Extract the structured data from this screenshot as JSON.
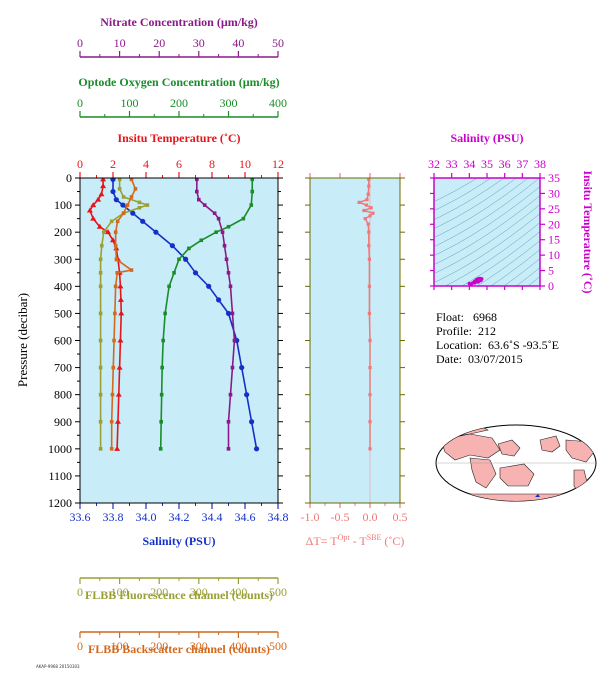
{
  "chart_data": [
    {
      "type": "line",
      "y_axis": {
        "label": "Pressure (decibar)",
        "range": [
          0,
          1200
        ],
        "inverted": true,
        "ticks": [
          "0",
          "100",
          "200",
          "300",
          "400",
          "500",
          "600",
          "700",
          "800",
          "900",
          "1000",
          "1100",
          "1200"
        ]
      },
      "axes": {
        "nitrate": {
          "label": "Nitrate Concentration (µm/kg)",
          "range": [
            0,
            50
          ],
          "ticks": [
            "0",
            "10",
            "20",
            "30",
            "40",
            "50"
          ],
          "color": "#8b1a89"
        },
        "oxygen": {
          "label": "Optode Oxygen Concentration (µm/kg)",
          "range": [
            0,
            400
          ],
          "ticks": [
            "0",
            "100",
            "200",
            "300",
            "400"
          ],
          "color": "#1a8c2a"
        },
        "temperature": {
          "label": "Insitu Temperature (˚C)",
          "range": [
            0,
            12
          ],
          "ticks": [
            "0",
            "2",
            "4",
            "6",
            "8",
            "10",
            "12"
          ],
          "color": "#e8141a"
        },
        "salinity": {
          "label": "Salinity (PSU)",
          "range": [
            33.6,
            34.8
          ],
          "ticks": [
            "33.6",
            "33.8",
            "34.0",
            "34.2",
            "34.4",
            "34.6",
            "34.8"
          ],
          "color": "#1530c8"
        },
        "fluorescence": {
          "label": "FLBB Fluorescence channel (counts)",
          "range": [
            0,
            500
          ],
          "ticks": [
            "0",
            "100",
            "200",
            "300",
            "400",
            "500"
          ],
          "color": "#9aa035"
        },
        "backscatter": {
          "label": "FLBB Backscatter channel (counts)",
          "range": [
            0,
            500
          ],
          "ticks": [
            "0",
            "100",
            "200",
            "300",
            "400",
            "500"
          ],
          "color": "#d2691e"
        }
      },
      "series": [
        {
          "axis": "temperature",
          "color": "#e8141a",
          "pressure": [
            5,
            30,
            60,
            80,
            100,
            120,
            150,
            180,
            200,
            230,
            260,
            300,
            350,
            400,
            450,
            500,
            600,
            700,
            800,
            900,
            1000
          ],
          "values": [
            1.4,
            1.4,
            1.3,
            1.1,
            0.8,
            0.6,
            0.8,
            1.2,
            1.7,
            2.0,
            2.2,
            2.3,
            2.4,
            2.45,
            2.48,
            2.5,
            2.45,
            2.4,
            2.35,
            2.3,
            2.25
          ]
        },
        {
          "axis": "salinity",
          "color": "#1530c8",
          "pressure": [
            5,
            50,
            80,
            100,
            130,
            160,
            200,
            250,
            300,
            350,
            400,
            450,
            500,
            600,
            700,
            800,
            900,
            1000
          ],
          "values": [
            33.8,
            33.8,
            33.82,
            33.86,
            33.92,
            33.98,
            34.06,
            34.16,
            34.24,
            34.3,
            34.38,
            34.44,
            34.5,
            34.55,
            34.58,
            34.61,
            34.64,
            34.67
          ]
        },
        {
          "axis": "oxygen",
          "color": "#1a8c2a",
          "pressure": [
            5,
            50,
            100,
            150,
            180,
            200,
            230,
            260,
            300,
            350,
            400,
            500,
            600,
            700,
            800,
            900,
            1000
          ],
          "values": [
            348,
            348,
            346,
            330,
            300,
            275,
            245,
            220,
            200,
            190,
            180,
            172,
            168,
            166,
            165,
            164,
            163
          ]
        },
        {
          "axis": "nitrate",
          "color": "#8b1a89",
          "pressure": [
            5,
            50,
            80,
            100,
            130,
            150,
            200,
            250,
            300,
            350,
            400,
            500,
            600,
            700,
            800,
            900,
            1000
          ],
          "values": [
            29.5,
            29.5,
            30,
            31.5,
            34,
            35,
            36,
            36.5,
            37,
            37.5,
            38,
            38.5,
            39,
            38.5,
            38,
            37.5,
            37.5
          ]
        },
        {
          "axis": "fluorescence",
          "color": "#9aa035",
          "pressure": [
            5,
            40,
            70,
            90,
            100,
            110,
            130,
            160,
            200,
            250,
            300,
            350,
            400,
            500,
            600,
            700,
            800,
            900,
            1000
          ],
          "values": [
            100,
            100,
            110,
            150,
            170,
            150,
            110,
            80,
            60,
            55,
            52,
            52,
            52,
            52,
            52,
            52,
            52,
            52,
            52
          ]
        },
        {
          "axis": "backscatter",
          "color": "#d2691e",
          "pressure": [
            5,
            40,
            70,
            100,
            130,
            160,
            200,
            250,
            300,
            340,
            350,
            400,
            500,
            600,
            700,
            800,
            900,
            1000
          ],
          "values": [
            130,
            140,
            130,
            120,
            110,
            95,
            90,
            90,
            92,
            130,
            94,
            90,
            88,
            86,
            84,
            82,
            80,
            80
          ]
        }
      ]
    },
    {
      "type": "line",
      "x_axis": {
        "label": "ΔT= Tᴼᵖᵗ - Tˢᴮᴱ (˚C)",
        "label_main": "ΔT= T",
        "label_sup1": "Opt",
        "label_mid": " - T",
        "label_sup2": "SBE",
        "label_tail": " (˚C)",
        "range": [
          -1.0,
          0.5
        ],
        "ticks": [
          "-1.0",
          "-0.5",
          "0.0",
          "0.5"
        ],
        "color": "#f07878"
      },
      "series": [
        {
          "name": "delta_t",
          "color": "#f07878",
          "pressure": [
            5,
            30,
            60,
            80,
            90,
            100,
            110,
            120,
            130,
            140,
            150,
            170,
            200,
            250,
            300,
            400,
            500,
            600,
            700,
            800,
            900,
            1000
          ],
          "values": [
            -0.02,
            -0.02,
            -0.03,
            -0.05,
            -0.18,
            -0.06,
            0.02,
            -0.1,
            0.05,
            0.0,
            -0.08,
            -0.03,
            -0.02,
            -0.02,
            -0.01,
            -0.01,
            -0.01,
            0.0,
            0.0,
            0.0,
            0.0,
            0.0
          ]
        }
      ]
    },
    {
      "type": "scatter",
      "title": "Salinity (PSU)",
      "x_axis": {
        "range": [
          32,
          38
        ],
        "ticks": [
          "32",
          "33",
          "34",
          "35",
          "36",
          "37",
          "38"
        ]
      },
      "y_axis": {
        "label": "Insitu Temperature (˚C)",
        "range": [
          0,
          35
        ],
        "ticks": [
          "0",
          "5",
          "10",
          "15",
          "20",
          "25",
          "30",
          "35"
        ]
      },
      "color": "#cc00cc",
      "points": {
        "salinity": [
          34.0,
          34.1,
          34.2,
          34.3,
          34.4,
          34.5,
          34.6,
          34.7,
          34.65,
          34.5,
          34.3
        ],
        "temperature": [
          0.8,
          0.6,
          1.0,
          1.5,
          2.0,
          2.3,
          2.4,
          2.3,
          1.8,
          1.3,
          1.0
        ]
      }
    }
  ],
  "info": {
    "float_label": "Float:",
    "float": "6968",
    "profile_label": "Profile:",
    "profile": "212",
    "location_label": "Location:",
    "location": "63.6˚S  -93.5˚E",
    "date_label": "Date:",
    "date": "03/07/2015"
  },
  "footer": "AKAP-9968 20150303"
}
